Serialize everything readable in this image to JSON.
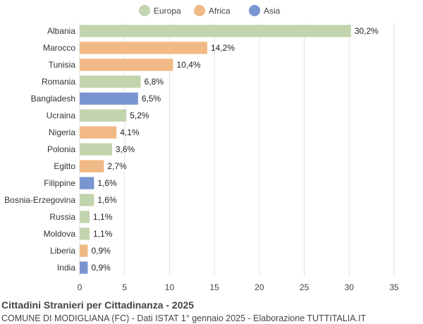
{
  "chart_data": {
    "type": "bar",
    "orientation": "horizontal",
    "title": "Cittadini Stranieri per Cittadinanza - 2025",
    "subtitle": "COMUNE DI MODIGLIANA (FC) - Dati ISTAT 1° gennaio 2025 - Elaborazione TUTTITALIA.IT",
    "xlim": [
      0,
      35
    ],
    "xticks": [
      0,
      5,
      10,
      15,
      20,
      25,
      30,
      35
    ],
    "grid": true,
    "legend_placement": "top-center",
    "legend": [
      {
        "name": "Europa",
        "color": "#c2d4ae"
      },
      {
        "name": "Africa",
        "color": "#f0b985"
      },
      {
        "name": "Asia",
        "color": "#7995cf"
      }
    ],
    "categories": [
      "Albania",
      "Marocco",
      "Tunisia",
      "Romania",
      "Bangladesh",
      "Ucraina",
      "Nigeria",
      "Polonia",
      "Egitto",
      "Filippine",
      "Bosnia-Erzegovina",
      "Russia",
      "Moldova",
      "Liberia",
      "India"
    ],
    "values": [
      30.2,
      14.2,
      10.4,
      6.8,
      6.5,
      5.2,
      4.1,
      3.6,
      2.7,
      1.6,
      1.6,
      1.1,
      1.1,
      0.9,
      0.9
    ],
    "value_labels": [
      "30,2%",
      "14,2%",
      "10,4%",
      "6,8%",
      "6,5%",
      "5,2%",
      "4,1%",
      "3,6%",
      "2,7%",
      "1,6%",
      "1,6%",
      "1,1%",
      "1,1%",
      "0,9%",
      "0,9%"
    ],
    "groups": [
      "Europa",
      "Africa",
      "Africa",
      "Europa",
      "Asia",
      "Europa",
      "Africa",
      "Europa",
      "Africa",
      "Asia",
      "Europa",
      "Europa",
      "Europa",
      "Africa",
      "Asia"
    ]
  }
}
